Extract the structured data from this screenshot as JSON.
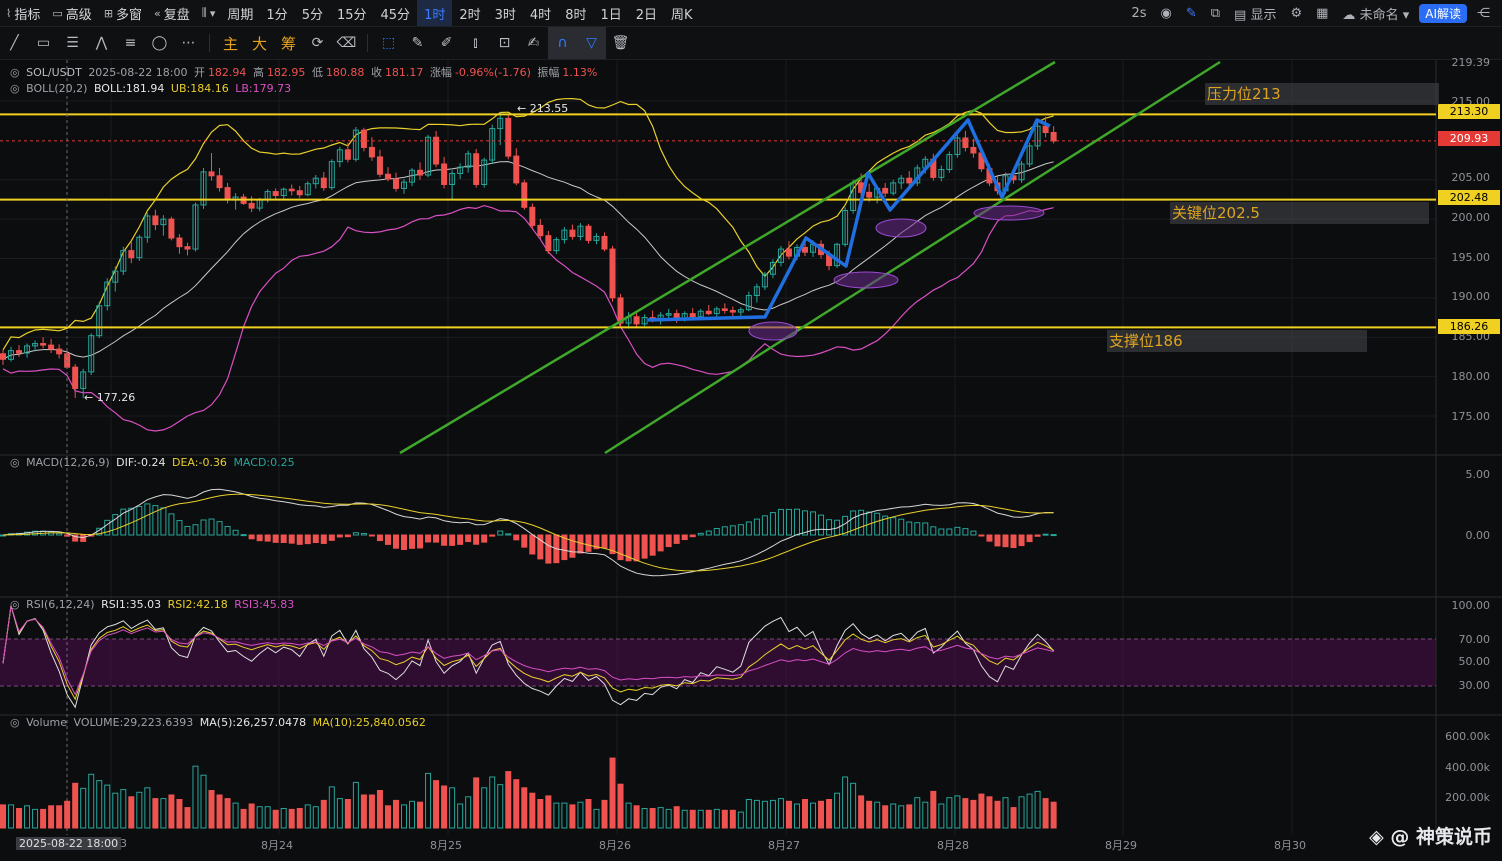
{
  "toolbar": {
    "indicators": "指标",
    "advanced": "高级",
    "multi_window": "多窗",
    "replay": "复盘",
    "period_label": "周期",
    "periods": [
      "1分",
      "5分",
      "15分",
      "45分",
      "1时",
      "2时",
      "3时",
      "4时",
      "8时",
      "1日",
      "2日",
      "周K"
    ],
    "active_period": "1时",
    "refresh": "2s",
    "display": "显示",
    "unnamed": "未命名",
    "ai_label": "AI解读"
  },
  "drawbar": {
    "t1": "主",
    "t2": "大",
    "t3": "筹"
  },
  "legend": {
    "symbol": "SOL/USDT",
    "datetime": "2025-08-22 18:00",
    "open_label": "开",
    "open": "182.94",
    "high_label": "高",
    "high": "182.95",
    "low_label": "低",
    "low": "180.88",
    "close_label": "收",
    "close": "181.17",
    "change_label": "涨幅",
    "change": "-0.96%(-1.76)",
    "amp_label": "振幅",
    "amp": "1.13%"
  },
  "boll": {
    "name": "BOLL(20,2)",
    "mid": "BOLL:181.94",
    "ub": "UB:184.16",
    "lb": "LB:179.73"
  },
  "macd_legend": {
    "name": "MACD(12,26,9)",
    "dif": "DIF:-0.24",
    "dea": "DEA:-0.36",
    "macd": "MACD:0.25"
  },
  "rsi_legend": {
    "name": "RSI(6,12,24)",
    "r1": "RSI1:35.03",
    "r2": "RSI2:42.18",
    "r3": "RSI3:45.83"
  },
  "vol_legend": {
    "name": "Volume",
    "vol": "VOLUME:29,223.6393",
    "ma5": "MA(5):26,257.0478",
    "ma10": "MA(10):25,840.0562"
  },
  "price_axis": [
    "219.39",
    "215.00",
    "205.00",
    "200.00",
    "195.00",
    "190.00",
    "185.00",
    "180.00",
    "175.00"
  ],
  "price_tags": {
    "resistance": "213.30",
    "current": "209.93",
    "key": "202.48",
    "support": "186.26"
  },
  "macd_axis": [
    "5.00",
    "0.00"
  ],
  "rsi_axis": [
    "100.00",
    "70.00",
    "50.00",
    "30.00"
  ],
  "vol_axis": [
    "600.00k",
    "400.00k",
    "200.00k"
  ],
  "date_axis": {
    "crosshair": "2025-08-22 18:00",
    "c_suffix": "3",
    "d1": "8月24",
    "d2": "8月25",
    "d3": "8月26",
    "d4": "8月27",
    "d5": "8月28",
    "d6": "8月29",
    "d7": "8月30"
  },
  "annotations": {
    "resistance": "压力位213",
    "key": "关键位202.5",
    "support": "支撑位186",
    "high_mark": "213.55",
    "low_mark": "177.26"
  },
  "watermark": "@ 神策说币",
  "colors": {
    "up": "#26a69a",
    "down": "#ef5350",
    "level_line": "#f0d020",
    "channel": "#3fa82a",
    "wave": "#1f6fe0",
    "boll_ub": "#e8cf2a",
    "boll_lb": "#d94fc4",
    "boll_mid": "#c8c8c8"
  },
  "chart_data": {
    "type": "candlestick",
    "symbol": "SOL/USDT",
    "interval": "1时",
    "price_range": [
      172,
      219.39
    ],
    "candles": [
      [
        182.9,
        183.4,
        181.5,
        182.2
      ],
      [
        182.2,
        183.8,
        181.9,
        183.3
      ],
      [
        183.3,
        184.0,
        182.5,
        183.0
      ],
      [
        183.0,
        184.2,
        182.4,
        183.9
      ],
      [
        183.9,
        184.6,
        183.2,
        184.2
      ],
      [
        184.2,
        185.0,
        183.6,
        184.0
      ],
      [
        184.0,
        184.8,
        183.0,
        183.5
      ],
      [
        183.5,
        184.1,
        182.3,
        182.9
      ],
      [
        182.9,
        183.3,
        181.0,
        181.2
      ],
      [
        181.2,
        181.6,
        177.3,
        178.5
      ],
      [
        178.5,
        181.0,
        177.26,
        180.6
      ],
      [
        180.6,
        185.5,
        180.2,
        185.2
      ],
      [
        185.2,
        189.5,
        184.9,
        189.0
      ],
      [
        189.0,
        192.5,
        188.4,
        192.0
      ],
      [
        192.0,
        194.0,
        190.8,
        193.4
      ],
      [
        193.4,
        196.5,
        192.9,
        196.0
      ],
      [
        196.0,
        197.2,
        194.4,
        195.1
      ],
      [
        195.1,
        198.0,
        194.7,
        197.7
      ],
      [
        197.7,
        200.8,
        197.0,
        200.4
      ],
      [
        200.4,
        201.2,
        198.6,
        199.3
      ],
      [
        199.3,
        200.5,
        197.9,
        200.0
      ],
      [
        200.0,
        200.3,
        197.3,
        197.6
      ],
      [
        197.6,
        198.1,
        195.6,
        196.5
      ],
      [
        196.5,
        197.0,
        195.4,
        196.2
      ],
      [
        196.2,
        202.1,
        195.9,
        201.8
      ],
      [
        201.8,
        206.5,
        201.3,
        206.0
      ],
      [
        206.0,
        208.4,
        204.9,
        205.5
      ],
      [
        205.5,
        206.5,
        203.5,
        204.0
      ],
      [
        204.0,
        204.6,
        202.0,
        202.5
      ],
      [
        202.5,
        203.3,
        201.2,
        202.8
      ],
      [
        202.8,
        203.2,
        201.8,
        202.0
      ],
      [
        202.0,
        202.9,
        200.9,
        201.4
      ],
      [
        201.4,
        202.7,
        201.0,
        202.5
      ],
      [
        202.5,
        203.8,
        202.1,
        203.5
      ],
      [
        203.5,
        203.9,
        202.6,
        203.0
      ],
      [
        203.0,
        204.0,
        202.5,
        203.8
      ],
      [
        203.8,
        204.4,
        203.0,
        203.6
      ],
      [
        203.6,
        204.2,
        202.7,
        203.1
      ],
      [
        203.1,
        204.8,
        202.9,
        204.5
      ],
      [
        204.5,
        205.6,
        203.9,
        205.2
      ],
      [
        205.2,
        206.0,
        203.6,
        204.0
      ],
      [
        204.0,
        207.6,
        203.7,
        207.3
      ],
      [
        207.3,
        209.2,
        206.6,
        208.8
      ],
      [
        208.8,
        209.7,
        207.2,
        207.6
      ],
      [
        207.6,
        211.7,
        207.3,
        211.3
      ],
      [
        211.3,
        211.6,
        208.6,
        209.1
      ],
      [
        209.1,
        210.4,
        207.4,
        207.9
      ],
      [
        207.9,
        208.8,
        205.3,
        205.7
      ],
      [
        205.7,
        206.6,
        204.8,
        205.1
      ],
      [
        205.1,
        205.9,
        203.5,
        203.9
      ],
      [
        203.9,
        205.1,
        203.2,
        204.7
      ],
      [
        204.7,
        206.5,
        204.2,
        206.2
      ],
      [
        206.2,
        207.2,
        205.0,
        205.6
      ],
      [
        205.6,
        210.7,
        205.3,
        210.4
      ],
      [
        210.4,
        211.2,
        206.6,
        207.0
      ],
      [
        207.0,
        207.9,
        203.9,
        204.4
      ],
      [
        204.4,
        206.2,
        202.4,
        205.8
      ],
      [
        205.8,
        207.1,
        205.1,
        206.6
      ],
      [
        206.6,
        208.7,
        205.9,
        208.3
      ],
      [
        208.3,
        208.9,
        204.0,
        204.4
      ],
      [
        204.4,
        207.8,
        204.0,
        207.5
      ],
      [
        207.5,
        212.0,
        207.0,
        211.5
      ],
      [
        211.5,
        213.55,
        209.4,
        212.8
      ],
      [
        212.8,
        213.2,
        207.6,
        208.0
      ],
      [
        208.0,
        209.0,
        204.3,
        204.6
      ],
      [
        204.6,
        205.0,
        201.2,
        201.5
      ],
      [
        201.5,
        202.0,
        198.8,
        199.2
      ],
      [
        199.2,
        200.0,
        197.5,
        197.9
      ],
      [
        197.9,
        198.5,
        195.6,
        196.0
      ],
      [
        196.0,
        197.7,
        195.6,
        197.4
      ],
      [
        197.4,
        199.0,
        196.9,
        198.6
      ],
      [
        198.6,
        199.3,
        197.4,
        197.8
      ],
      [
        197.8,
        199.5,
        197.3,
        199.1
      ],
      [
        199.1,
        199.4,
        196.9,
        197.3
      ],
      [
        197.3,
        198.2,
        196.8,
        197.8
      ],
      [
        197.8,
        198.3,
        195.9,
        196.2
      ],
      [
        196.2,
        196.6,
        189.5,
        190.0
      ],
      [
        190.0,
        190.5,
        186.3,
        186.8
      ],
      [
        186.8,
        188.2,
        186.1,
        187.6
      ],
      [
        187.6,
        188.1,
        186.3,
        186.7
      ],
      [
        186.7,
        187.9,
        186.4,
        187.5
      ],
      [
        187.5,
        188.4,
        186.9,
        187.1
      ],
      [
        187.1,
        188.2,
        186.6,
        187.8
      ],
      [
        187.8,
        188.6,
        187.2,
        188.0
      ],
      [
        188.0,
        188.5,
        186.8,
        187.3
      ],
      [
        187.3,
        188.3,
        187.0,
        188.0
      ],
      [
        188.0,
        188.7,
        187.4,
        187.6
      ],
      [
        187.6,
        188.6,
        187.3,
        188.3
      ],
      [
        188.3,
        189.1,
        187.8,
        188.0
      ],
      [
        188.0,
        188.9,
        187.5,
        188.6
      ],
      [
        188.6,
        189.3,
        188.0,
        188.4
      ],
      [
        188.4,
        188.9,
        187.6,
        188.2
      ],
      [
        188.2,
        188.8,
        187.7,
        188.5
      ],
      [
        188.5,
        190.8,
        188.3,
        190.3
      ],
      [
        190.3,
        191.8,
        189.4,
        191.4
      ],
      [
        191.4,
        193.3,
        191.0,
        193.0
      ],
      [
        193.0,
        194.9,
        192.5,
        194.5
      ],
      [
        194.5,
        196.6,
        194.0,
        196.2
      ],
      [
        196.2,
        197.2,
        194.9,
        195.3
      ],
      [
        195.3,
        196.8,
        194.8,
        196.4
      ],
      [
        196.4,
        197.8,
        195.3,
        195.8
      ],
      [
        195.8,
        197.3,
        195.2,
        196.8
      ],
      [
        196.8,
        197.3,
        195.0,
        195.5
      ],
      [
        195.5,
        196.0,
        193.5,
        194.1
      ],
      [
        194.1,
        197.0,
        193.8,
        196.8
      ],
      [
        196.8,
        201.5,
        196.5,
        201.1
      ],
      [
        201.1,
        205.0,
        200.7,
        204.6
      ],
      [
        204.6,
        205.8,
        202.9,
        203.4
      ],
      [
        203.4,
        204.5,
        202.2,
        202.8
      ],
      [
        202.8,
        204.2,
        202.0,
        203.9
      ],
      [
        203.9,
        204.6,
        202.8,
        203.3
      ],
      [
        203.3,
        205.0,
        203.0,
        204.6
      ],
      [
        204.6,
        205.6,
        203.8,
        205.2
      ],
      [
        205.2,
        206.1,
        204.2,
        204.6
      ],
      [
        204.6,
        206.9,
        204.2,
        206.5
      ],
      [
        206.5,
        208.0,
        205.8,
        207.6
      ],
      [
        207.6,
        208.3,
        204.9,
        205.3
      ],
      [
        205.3,
        206.8,
        204.8,
        206.3
      ],
      [
        206.3,
        208.6,
        205.9,
        208.2
      ],
      [
        208.2,
        210.7,
        207.8,
        210.3
      ],
      [
        210.3,
        211.2,
        208.6,
        209.1
      ],
      [
        209.1,
        210.2,
        207.8,
        208.4
      ],
      [
        208.4,
        209.1,
        206.0,
        206.4
      ],
      [
        206.4,
        207.0,
        204.2,
        204.6
      ],
      [
        204.6,
        205.4,
        203.1,
        203.6
      ],
      [
        203.6,
        205.9,
        203.2,
        205.5
      ],
      [
        205.5,
        206.1,
        204.5,
        205.0
      ],
      [
        205.0,
        207.4,
        204.6,
        207.0
      ],
      [
        207.0,
        209.7,
        206.6,
        209.3
      ],
      [
        209.3,
        212.2,
        208.8,
        211.8
      ],
      [
        211.8,
        213.0,
        210.4,
        211.0
      ],
      [
        211.0,
        211.8,
        209.6,
        209.93
      ]
    ],
    "levels": {
      "resistance": 213.3,
      "key": 202.48,
      "support": 186.26
    },
    "macd": {
      "dif": -0.24,
      "dea": -0.36,
      "hist": 0.25
    },
    "rsi": {
      "rsi1": 35.03,
      "rsi2": 42.18,
      "rsi3": 45.83
    },
    "volume": {
      "last": 29223.6393,
      "ma5": 26257.0478,
      "ma10": 25840.0562
    }
  }
}
